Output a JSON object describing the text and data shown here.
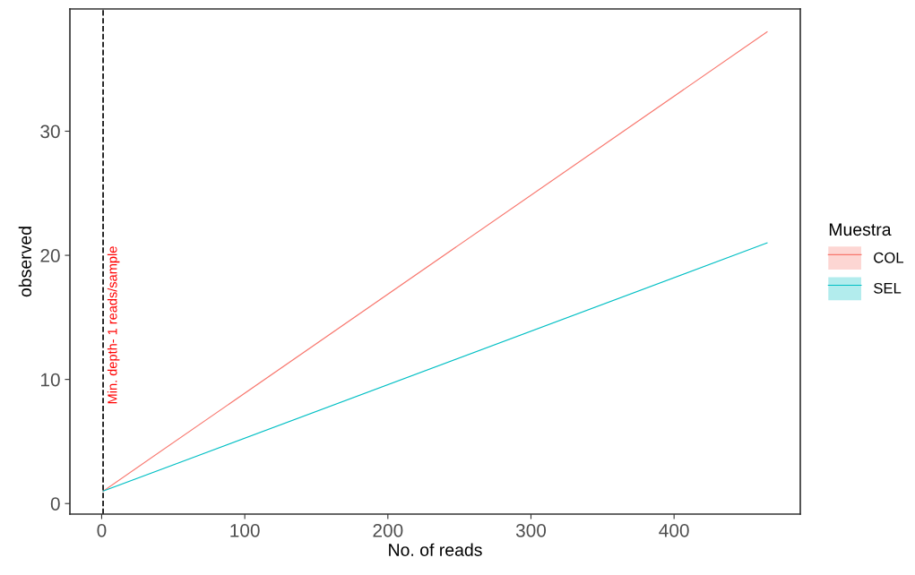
{
  "chart_data": {
    "type": "line",
    "xlabel": "No. of reads",
    "ylabel": "observed",
    "legend_title": "Muestra",
    "x": [
      1,
      465
    ],
    "series": [
      {
        "name": "COL",
        "color": "#F8766D",
        "values": [
          1,
          38
        ]
      },
      {
        "name": "SEL",
        "color": "#00BFC4",
        "values": [
          1,
          21
        ]
      }
    ],
    "xlim": [
      -22.2,
      488.2
    ],
    "xticks": [
      0,
      100,
      200,
      300,
      400
    ],
    "ylim": [
      -0.85,
      39.85
    ],
    "yticks": [
      0,
      10,
      20,
      30
    ],
    "ref_lines": [
      {
        "axis": "x",
        "value": 1,
        "label": "Min. depth- 1 reads/sample",
        "color": "#000000",
        "line_style": "dashed"
      }
    ],
    "grid": false,
    "legend": "right",
    "marker": "none",
    "line_style": "solid"
  }
}
